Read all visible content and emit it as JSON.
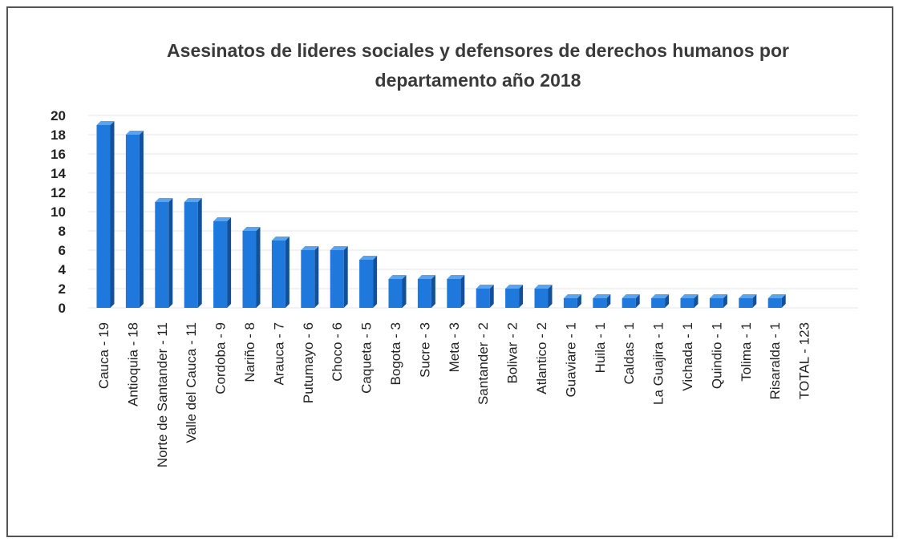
{
  "chart_data": {
    "type": "bar",
    "title_lines": [
      "Asesinatos de lideres sociales y defensores de derechos humanos por",
      "departamento  año 2018"
    ],
    "categories": [
      "Cauca - 19",
      "Antioquia - 18",
      "Norte de Santander - 11",
      "Valle del Cauca - 11",
      "Cordoba - 9",
      "Nariño - 8",
      "Arauca - 7",
      "Putumayo - 6",
      "Choco - 6",
      "Caqueta - 5",
      "Bogota - 3",
      "Sucre - 3",
      "Meta - 3",
      "Santander - 2",
      "Bolivar - 2",
      "Atlantico - 2",
      "Guaviare - 1",
      "Huila - 1",
      "Caldas - 1",
      "La Guajira - 1",
      "Vichada - 1",
      "Quindio - 1",
      "Tolima - 1",
      "Risaralda - 1",
      "TOTAL - 123"
    ],
    "values": [
      19,
      18,
      11,
      11,
      9,
      8,
      7,
      6,
      6,
      5,
      3,
      3,
      3,
      2,
      2,
      2,
      1,
      1,
      1,
      1,
      1,
      1,
      1,
      1,
      0
    ],
    "ylim": [
      0,
      20
    ],
    "yticks": [
      0,
      2,
      4,
      6,
      8,
      10,
      12,
      14,
      16,
      18,
      20
    ],
    "grid": true,
    "legend": "none",
    "colors": {
      "bar_front": "#1f78dc",
      "bar_side": "#12509a",
      "bar_top": "#5aa4ee"
    }
  }
}
